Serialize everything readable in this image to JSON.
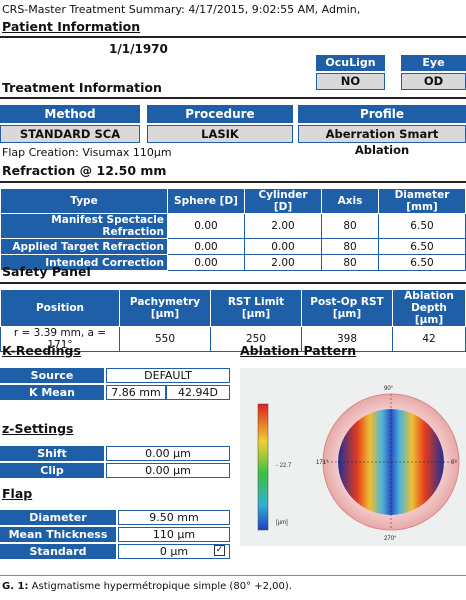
{
  "report": {
    "title": "CRS-Master Treatment Summary: 4/17/2015, 9:02:55 AM, Admin,",
    "patient_info_heading": "Patient Information",
    "dob": "1/1/1970"
  },
  "oculign": {
    "label": "OcuLign",
    "value": "NO"
  },
  "eye": {
    "label": "Eye",
    "value": "OD"
  },
  "treatment": {
    "heading": "Treatment Information",
    "method_label": "Method",
    "method_value": "STANDARD SCA",
    "procedure_label": "Procedure",
    "procedure_value": "LASIK",
    "profile_label": "Profile",
    "profile_value": "Aberration Smart Ablation",
    "flap_creation": "Flap Creation: Visumax 110µm"
  },
  "refraction": {
    "heading": "Refraction @ 12.50 mm",
    "headers": [
      "Type",
      "Sphere [D]",
      "Cylinder [D]",
      "Axis",
      "Diameter [mm]"
    ],
    "rows": [
      {
        "type": "Manifest Spectacle Refraction",
        "sphere": "0.00",
        "cylinder": "2.00",
        "axis": "80",
        "diameter": "6.50"
      },
      {
        "type": "Applied Target Refraction",
        "sphere": "0.00",
        "cylinder": "0.00",
        "axis": "80",
        "diameter": "6.50"
      },
      {
        "type": "Intended Correction",
        "sphere": "0.00",
        "cylinder": "2.00",
        "axis": "80",
        "diameter": "6.50"
      }
    ]
  },
  "safety": {
    "heading": "Safety Panel",
    "headers": [
      "Position",
      "Pachymetry [µm]",
      "RST Limit [µm]",
      "Post-Op RST [µm]",
      "Ablation Depth [µm]"
    ],
    "row": {
      "position": "r = 3.39 mm, a = 171°",
      "pachymetry": "550",
      "rst_limit": "250",
      "postop_rst": "398",
      "ablation_depth": "42"
    }
  },
  "kreadings": {
    "heading": "K-Reedings",
    "source_label": "Source",
    "source_value": "DEFAULT",
    "kmean_label": "K Mean",
    "kmean_mm": "7.86 mm",
    "kmean_d": "42.94D"
  },
  "zsettings": {
    "heading": "z-Settings",
    "shift_label": "Shift",
    "shift_value": "0.00 µm",
    "clip_label": "Clip",
    "clip_value": "0.00 µm"
  },
  "flap": {
    "heading": "Flap",
    "diameter_label": "Diameter",
    "diameter_value": "9.50 mm",
    "thickness_label": "Mean Thickness",
    "thickness_value": "110 µm",
    "stddev_label": "Standard Deviation",
    "stddev_value": "0 µm",
    "stddev_checked": true
  },
  "ablation": {
    "heading": "Ablation Pattern",
    "scale_mid": "- 22.7",
    "scale_unit": "[µm]",
    "scale_top": "",
    "label_left": "171°",
    "label_right": "0°",
    "label_top": "90°",
    "label_bottom": "270°"
  },
  "figure_caption": {
    "prefix": "G. 1:",
    "text": "Astigmatisme hypermétropique simple (80° +2,00)."
  },
  "colors": {
    "accent": "#1f5fa8",
    "value_gray": "#d9d9d9"
  }
}
